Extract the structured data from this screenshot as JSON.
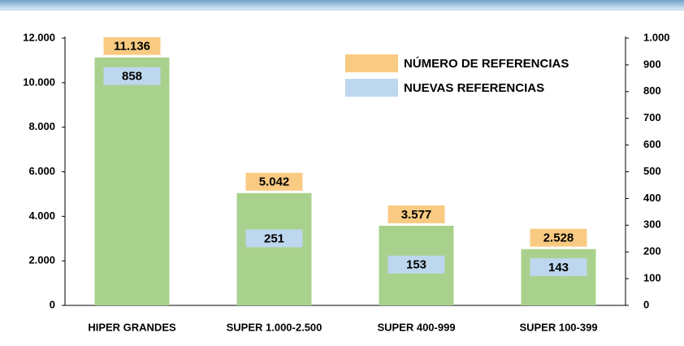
{
  "chart_data": {
    "type": "bar",
    "categories": [
      "HIPER GRANDES",
      "SUPER 1.000-2.500",
      "SUPER 400-999",
      "SUPER 100-399"
    ],
    "bar_color": "#a9d18e",
    "series": [
      {
        "name": "NÚMERO DE REFERENCIAS",
        "color": "#f9cb82",
        "values": [
          11136,
          5042,
          3577,
          2528
        ],
        "value_labels": [
          "11.136",
          "5.042",
          "3.577",
          "2.528"
        ]
      },
      {
        "name": "NUEVAS REFERENCIAS",
        "color": "#bdd7ee",
        "axis": "y2",
        "values": [
          858,
          251,
          153,
          143
        ]
      }
    ],
    "ylim": [
      0,
      12000
    ],
    "yticks": [
      0,
      {
        "value": 2000,
        "label": "2.000"
      },
      {
        "value": 4000,
        "label": "4.000"
      },
      {
        "value": 6000,
        "label": "6.000"
      },
      {
        "value": 8000,
        "label": "8.000"
      },
      {
        "value": 10000,
        "label": "10.000"
      },
      {
        "value": 12000,
        "label": "12.000"
      }
    ],
    "y2lim": [
      0,
      1000
    ],
    "y2ticks": [
      0,
      100,
      200,
      300,
      400,
      500,
      600,
      700,
      800,
      900,
      {
        "value": 1000,
        "label": "1.000"
      }
    ],
    "legend": "upper right"
  }
}
